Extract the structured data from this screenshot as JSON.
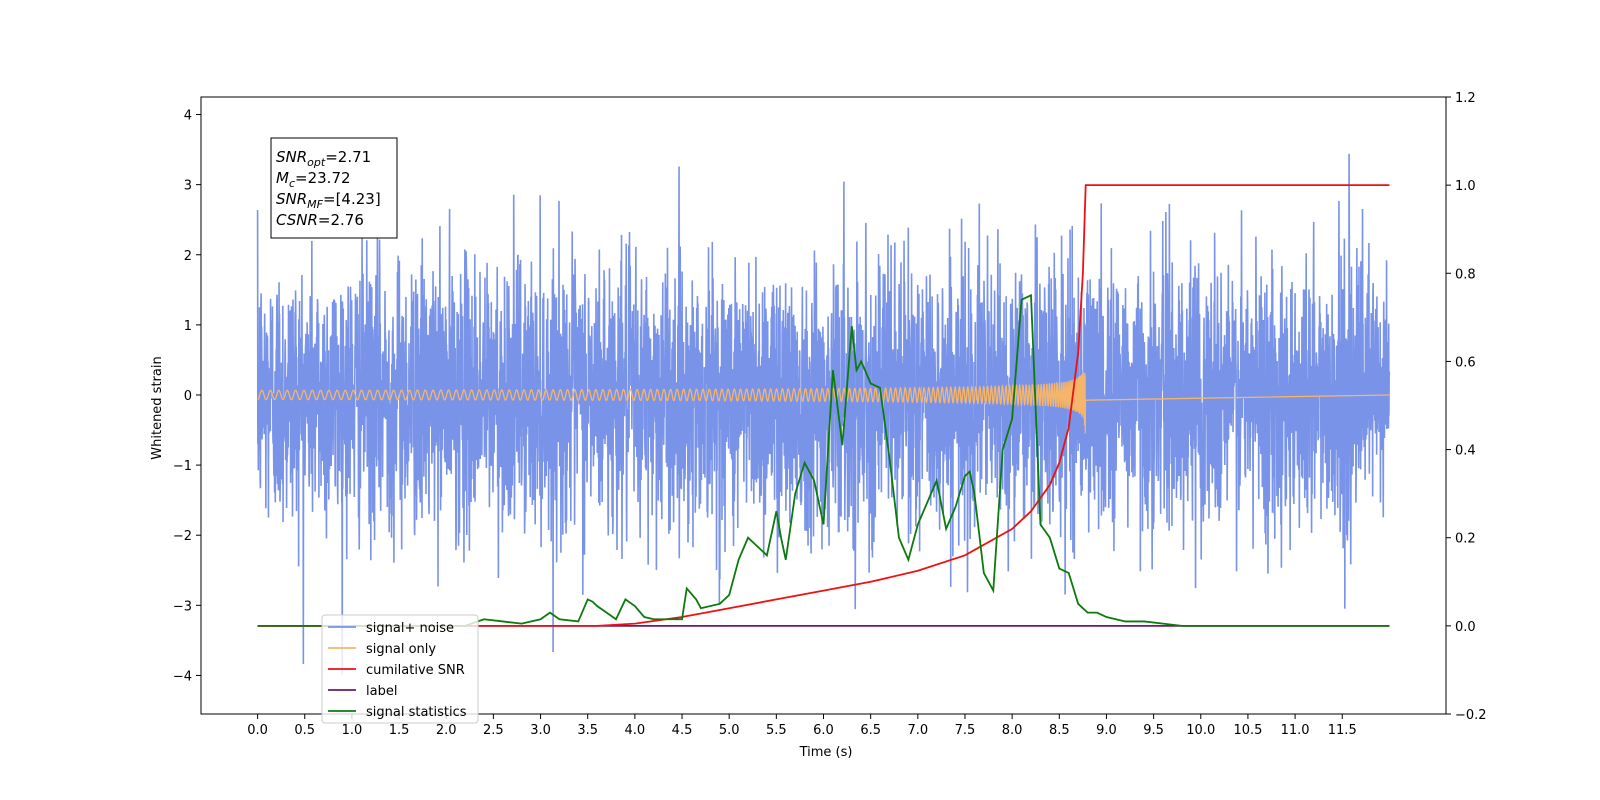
{
  "chart_data": {
    "type": "line",
    "title": "",
    "xlabel": "Time (s)",
    "ylabel": "Whitened strain",
    "ylabel_right": "",
    "xlim": [
      -0.6,
      12.6
    ],
    "ylim": [
      -4.55,
      4.25
    ],
    "ylim_right": [
      -0.2,
      1.2
    ],
    "x_ticks": [
      0.0,
      0.5,
      1.0,
      1.5,
      2.0,
      2.5,
      3.0,
      3.5,
      4.0,
      4.5,
      5.0,
      5.5,
      6.0,
      6.5,
      7.0,
      7.5,
      8.0,
      8.5,
      9.0,
      9.5,
      10.0,
      10.5,
      11.0,
      11.5
    ],
    "x_tick_labels": [
      "0.0",
      "0.5",
      "1.0",
      "1.5",
      "2.0",
      "2.5",
      "3.0",
      "3.5",
      "4.0",
      "4.5",
      "5.0",
      "5.5",
      "6.0",
      "6.5",
      "7.0",
      "7.5",
      "8.0",
      "8.5",
      "9.0",
      "9.5",
      "10.0",
      "10.5",
      "11.0",
      "11.5"
    ],
    "y_ticks": [
      4,
      3,
      2,
      1,
      0,
      -1,
      -2,
      -3,
      -4
    ],
    "y_tick_labels": [
      "4",
      "3",
      "2",
      "1",
      "0",
      "−1",
      "−2",
      "−3",
      "−4"
    ],
    "y_ticks_right": [
      1.2,
      1.0,
      0.8,
      0.6,
      0.4,
      0.2,
      0.0,
      -0.2
    ],
    "y_tick_labels_right": [
      "1.2",
      "1.0",
      "0.8",
      "0.6",
      "0.4",
      "0.2",
      "0.0",
      "−0.2"
    ],
    "grid": false,
    "legend_position": "lower-left",
    "annotation": {
      "lines": [
        {
          "main": "SNR",
          "sub": "opt",
          "rest": "=2.71"
        },
        {
          "main": "M",
          "sub": "c",
          "rest": "=23.72"
        },
        {
          "main": "SNR",
          "sub": "MF",
          "rest": "=[4.23]"
        },
        {
          "main": "CSNR",
          "sub": "",
          "rest": "=2.76"
        }
      ]
    },
    "series": [
      {
        "name": "signal+ noise",
        "axis": "left",
        "color": "#7893e8",
        "style": "noise",
        "x_range": [
          0.0,
          12.0
        ],
        "typical_amplitude": [
          -1.7,
          1.7
        ],
        "extremes": [
          -4.1,
          3.85
        ]
      },
      {
        "name": "signal only",
        "axis": "left",
        "color": "#f5b56b",
        "style": "chirp",
        "x_range": [
          0.0,
          8.78
        ],
        "peak_time": 8.78,
        "peak_amplitude": 0.7
      },
      {
        "name": "cumilative SNR",
        "axis": "right",
        "color": "#ee1111",
        "x": [
          0.0,
          3.6,
          4.0,
          4.5,
          5.0,
          5.5,
          6.0,
          6.5,
          7.0,
          7.5,
          8.0,
          8.2,
          8.4,
          8.5,
          8.6,
          8.7,
          8.75,
          8.78,
          8.8,
          12.0
        ],
        "values": [
          0.0,
          0.0,
          0.005,
          0.02,
          0.04,
          0.06,
          0.08,
          0.1,
          0.125,
          0.16,
          0.22,
          0.26,
          0.32,
          0.37,
          0.45,
          0.62,
          0.8,
          1.0,
          1.0,
          1.0
        ]
      },
      {
        "name": "label",
        "axis": "right",
        "color": "#6a1a6a",
        "x": [
          0.0,
          12.0
        ],
        "values": [
          0.0,
          0.0
        ]
      },
      {
        "name": "signal statistics",
        "axis": "right",
        "color": "#0d7a0d",
        "x": [
          0.0,
          2.2,
          2.4,
          2.6,
          2.8,
          3.0,
          3.1,
          3.2,
          3.4,
          3.5,
          3.55,
          3.6,
          3.7,
          3.8,
          3.9,
          4.0,
          4.1,
          4.2,
          4.5,
          4.55,
          4.65,
          4.7,
          4.9,
          5.0,
          5.1,
          5.2,
          5.3,
          5.4,
          5.5,
          5.55,
          5.6,
          5.7,
          5.8,
          5.9,
          6.0,
          6.1,
          6.2,
          6.3,
          6.35,
          6.4,
          6.5,
          6.6,
          6.7,
          6.8,
          6.9,
          7.0,
          7.1,
          7.2,
          7.3,
          7.4,
          7.5,
          7.55,
          7.6,
          7.7,
          7.8,
          7.9,
          8.0,
          8.1,
          8.2,
          8.3,
          8.4,
          8.5,
          8.6,
          8.7,
          8.8,
          8.9,
          9.0,
          9.2,
          9.4,
          9.6,
          9.8,
          10.0,
          11.5,
          12.0
        ],
        "values": [
          0.0,
          0.0,
          0.015,
          0.01,
          0.005,
          0.015,
          0.03,
          0.015,
          0.01,
          0.06,
          0.055,
          0.045,
          0.03,
          0.015,
          0.06,
          0.045,
          0.02,
          0.015,
          0.015,
          0.085,
          0.06,
          0.04,
          0.05,
          0.07,
          0.15,
          0.2,
          0.18,
          0.16,
          0.26,
          0.2,
          0.15,
          0.3,
          0.37,
          0.33,
          0.23,
          0.58,
          0.41,
          0.68,
          0.58,
          0.6,
          0.55,
          0.54,
          0.38,
          0.2,
          0.15,
          0.23,
          0.28,
          0.33,
          0.22,
          0.27,
          0.34,
          0.35,
          0.3,
          0.12,
          0.08,
          0.4,
          0.47,
          0.74,
          0.75,
          0.23,
          0.2,
          0.13,
          0.12,
          0.05,
          0.03,
          0.03,
          0.02,
          0.01,
          0.01,
          0.005,
          0.0,
          0.0,
          0.0,
          0.0
        ]
      }
    ]
  }
}
